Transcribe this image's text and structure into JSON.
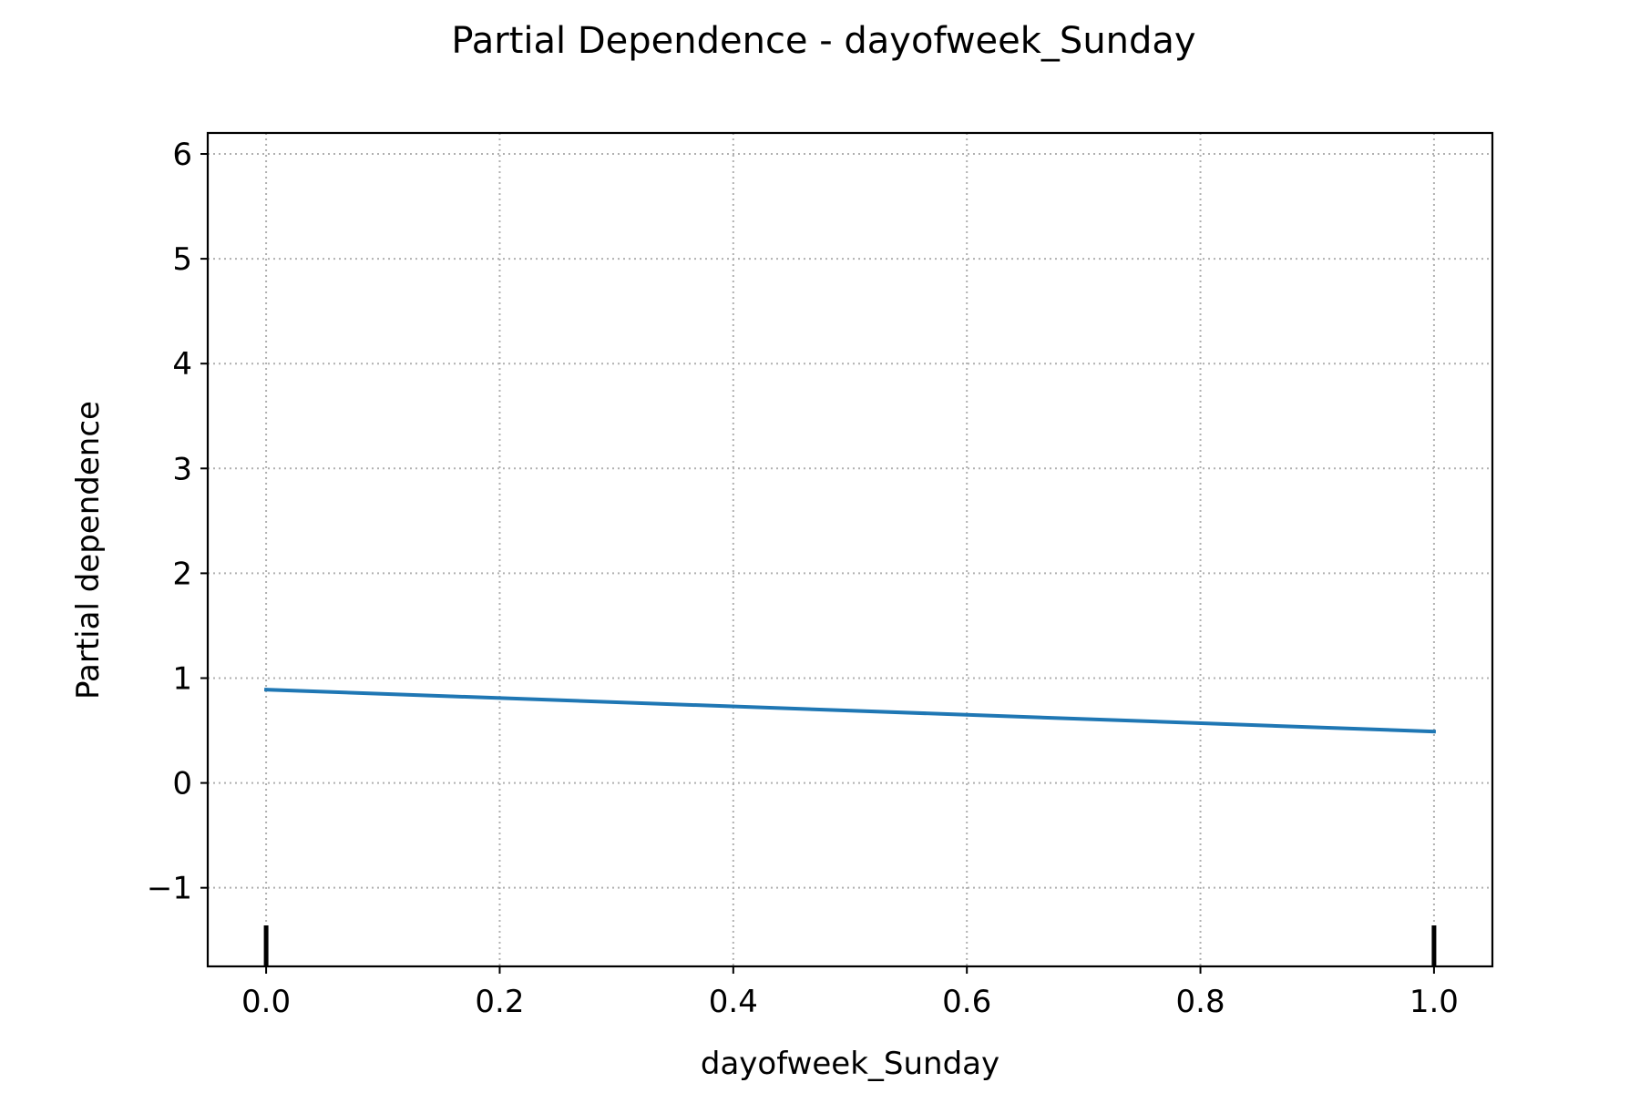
{
  "chart_data": {
    "type": "line",
    "title": "Partial Dependence - dayofweek_Sunday",
    "xlabel": "dayofweek_Sunday",
    "ylabel": "Partial dependence",
    "xlim": [
      -0.05,
      1.05
    ],
    "ylim": [
      -1.75,
      6.2
    ],
    "xticks": [
      0.0,
      0.2,
      0.4,
      0.6,
      0.8,
      1.0
    ],
    "xtick_labels": [
      "0.0",
      "0.2",
      "0.4",
      "0.6",
      "0.8",
      "1.0"
    ],
    "yticks": [
      -1,
      0,
      1,
      2,
      3,
      4,
      5,
      6
    ],
    "ytick_labels": [
      "−1",
      "0",
      "1",
      "2",
      "3",
      "4",
      "5",
      "6"
    ],
    "grid": true,
    "grid_style": "dotted",
    "series": [
      {
        "color": "#1f77b4",
        "x": [
          0.0,
          1.0
        ],
        "y": [
          0.89,
          0.49
        ]
      }
    ],
    "rug": {
      "color": "#000000",
      "x": [
        0.0,
        1.0
      ]
    }
  }
}
